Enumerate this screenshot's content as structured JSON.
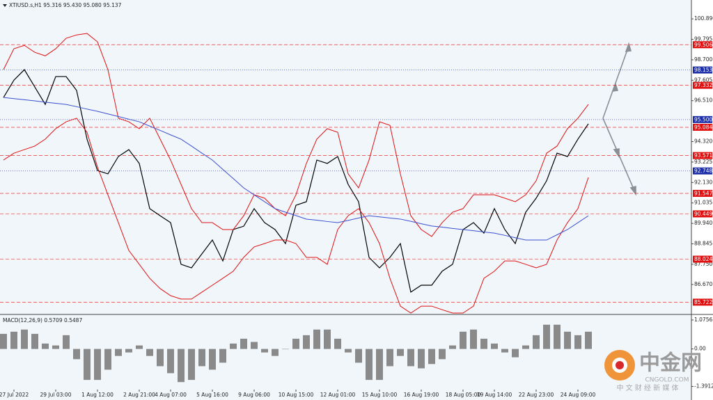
{
  "chart_data": [
    {
      "type": "line",
      "title": "XTIUSD.s,H1 95.316 95.430 95.080 95.137",
      "categories": [
        null,
        "27 Jul 2022",
        null,
        null,
        null,
        "29 Jul 03:00",
        null,
        null,
        null,
        "1 Aug 12:00",
        null,
        null,
        null,
        "2 Aug 21:00",
        null,
        null,
        "4 Aug 07:00",
        null,
        null,
        null,
        "5 Aug 16:00",
        null,
        null,
        null,
        "9 Aug 06:00",
        null,
        null,
        null,
        "10 Aug 15:00",
        null,
        null,
        null,
        "12 Aug 01:00",
        null,
        null,
        null,
        "15 Aug 10:00",
        null,
        null,
        null,
        "16 Aug 19:00",
        null,
        null,
        null,
        "18 Aug 05:00",
        null,
        null,
        "19 Aug 14:00",
        null,
        null,
        null,
        "22 Aug 23:00",
        null,
        null,
        null,
        "24 Aug 09:00",
        null
      ],
      "series": [
        {
          "color": "#000000",
          "values": [
            96.68,
            97.61,
            98.17,
            97.24,
            96.31,
            97.8,
            97.8,
            97.06,
            94.45,
            92.77,
            92.59,
            93.52,
            93.89,
            93.15,
            90.73,
            90.35,
            89.98,
            87.75,
            87.56,
            88.31,
            89.05,
            87.93,
            89.61,
            89.79,
            90.73,
            89.98,
            89.61,
            88.86,
            90.91,
            91.1,
            93.33,
            93.15,
            93.52,
            92.03,
            91.1,
            88.12,
            87.56,
            88.12,
            88.86,
            86.26,
            86.63,
            86.63,
            87.38,
            87.75,
            89.61,
            89.98,
            89.42,
            90.73,
            89.61,
            88.86,
            90.54,
            91.29,
            92.22,
            93.7,
            93.52,
            94.45,
            95.27
          ]
        },
        {
          "color": "#e01010",
          "values": [
            98.17,
            99.29,
            99.47,
            99.1,
            98.91,
            99.29,
            99.85,
            100.03,
            100.11,
            99.66,
            98.17,
            95.57,
            95.38,
            95.01,
            95.57,
            94.45,
            93.33,
            92.03,
            90.73,
            89.98,
            89.98,
            89.61,
            89.61,
            90.35,
            91.47,
            91.29,
            90.73,
            90.35,
            91.47,
            93.15,
            94.45,
            95.01,
            94.82,
            92.59,
            91.84,
            93.33,
            95.38,
            95.19,
            92.59,
            90.35,
            89.61,
            89.24,
            89.98,
            90.54,
            90.73,
            91.47,
            91.47,
            91.47,
            91.29,
            91.1,
            91.47,
            92.22,
            93.7,
            94.08,
            95.01,
            95.57,
            96.31
          ]
        },
        {
          "color": "#e01010",
          "values": [
            93.33,
            93.7,
            93.89,
            94.08,
            94.45,
            95.01,
            95.38,
            95.57,
            94.82,
            92.96,
            91.47,
            89.98,
            88.49,
            87.75,
            87.0,
            86.45,
            86.07,
            85.89,
            85.89,
            86.26,
            86.63,
            87.0,
            87.38,
            88.12,
            88.68,
            88.86,
            89.05,
            89.05,
            88.86,
            88.12,
            88.12,
            87.75,
            89.61,
            90.35,
            90.73,
            89.98,
            88.86,
            87.0,
            85.51,
            85.14,
            85.51,
            85.51,
            85.32,
            85.14,
            85.14,
            85.51,
            87.0,
            87.38,
            87.93,
            87.93,
            87.75,
            87.56,
            87.75,
            89.05,
            89.98,
            90.73,
            92.4
          ]
        },
        {
          "color": "#3a4fd0",
          "values": [
            96.68,
            96.62,
            96.56,
            96.5,
            96.43,
            96.37,
            96.31,
            96.19,
            96.06,
            95.94,
            95.8,
            95.66,
            95.52,
            95.38,
            95.15,
            94.92,
            94.68,
            94.45,
            94.08,
            93.7,
            93.33,
            92.83,
            92.34,
            91.84,
            91.47,
            91.1,
            90.73,
            90.54,
            90.36,
            90.17,
            90.11,
            90.04,
            89.98,
            90.1,
            90.23,
            90.35,
            90.29,
            90.23,
            90.17,
            90.05,
            89.92,
            89.8,
            89.74,
            89.67,
            89.61,
            89.55,
            89.48,
            89.42,
            89.3,
            89.17,
            89.05,
            89.05,
            89.05,
            89.33,
            89.61,
            89.98,
            90.35
          ]
        }
      ],
      "ylim": [
        85.14,
        101.9
      ],
      "yticks": [
        {
          "value": 100.89,
          "label": "100.890"
        },
        99.795,
        {
          "value": 98.7,
          "label": "98.700"
        },
        97.605,
        {
          "value": 96.51,
          "label": "96.510"
        },
        {
          "value": 94.32,
          "label": "94.320"
        },
        93.225,
        {
          "value": 92.13,
          "label": "92.130"
        },
        91.035,
        {
          "value": 89.94,
          "label": "89.940"
        },
        88.845,
        {
          "value": 87.75,
          "label": "87.750"
        },
        {
          "value": 86.67,
          "label": "86.670"
        }
      ],
      "levels": [
        {
          "value": 99.506,
          "color": "#e01010"
        },
        {
          "value": 98.153,
          "color": "#1c2fa8"
        },
        {
          "value": 97.332,
          "color": "#e01010"
        },
        {
          "value": 95.5,
          "label": "95.500",
          "color": "#1c2fa8"
        },
        {
          "value": 95.084,
          "color": "#e01010"
        },
        {
          "value": 93.571,
          "color": "#e01010"
        },
        {
          "value": 92.748,
          "color": "#1c2fa8"
        },
        {
          "value": 91.547,
          "color": "#e01010"
        },
        {
          "value": 90.449,
          "color": "#e01010"
        },
        {
          "value": 88.024,
          "color": "#e01010"
        },
        {
          "value": 85.722,
          "color": "#e01010"
        }
      ]
    },
    {
      "type": "bar",
      "title": "MACD(12,26,9) 0.5709 0.5487",
      "values": [
        0.56,
        0.64,
        0.72,
        0.56,
        0.2,
        0.13,
        0.51,
        -0.38,
        -1.15,
        -1.15,
        -0.77,
        -0.26,
        -0.13,
        0.13,
        -0.26,
        -0.64,
        -0.9,
        -1.23,
        -1.15,
        -0.64,
        -0.77,
        -0.51,
        0.2,
        0.38,
        0.26,
        -0.13,
        -0.26,
        0.0,
        0.38,
        0.51,
        0.72,
        0.72,
        0.38,
        -0.13,
        -0.51,
        -1.15,
        -1.15,
        -0.64,
        -0.26,
        -0.64,
        -0.72,
        -0.56,
        -0.38,
        0.13,
        0.64,
        0.72,
        0.38,
        0.2,
        -0.13,
        -0.31,
        0.13,
        0.51,
        0.9,
        0.9,
        0.64,
        0.51,
        0.64
      ],
      "color": "#8a8a8a",
      "ylim": [
        -1.895,
        1.255
      ],
      "yticks": [
        1.0756,
        {
          "value": 0,
          "label": "0.00"
        },
        -1.3912
      ]
    }
  ],
  "watermark": {
    "logo": "中金网",
    "site": "CNGOLD.COM",
    "tagline": "中 文 财 经 新 媒 体"
  }
}
